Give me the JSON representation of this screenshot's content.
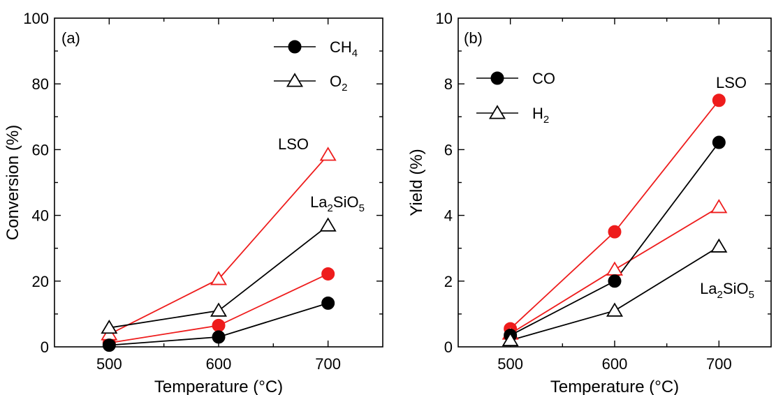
{
  "chart_data": [
    {
      "type": "line",
      "panel_label": "(a)",
      "xlabel": "Temperature (°C)",
      "ylabel": "Conversion (%)",
      "xlim": [
        450,
        750
      ],
      "ylim": [
        0,
        100
      ],
      "x_ticks": [
        500,
        600,
        700
      ],
      "y_ticks": [
        0,
        20,
        40,
        60,
        80,
        100
      ],
      "legend": {
        "placement": "top-right",
        "entries": [
          {
            "sym": "CH",
            "sub": "4",
            "marker": "circle-filled"
          },
          {
            "sym": "O",
            "sub": "2",
            "marker": "triangle-open"
          }
        ]
      },
      "annotations": [
        {
          "id": "lso",
          "text": "LSO",
          "color": "#ee1c1c"
        },
        {
          "id": "la2sio5",
          "parts": [
            "La",
            "2",
            "SiO",
            "5"
          ],
          "color": "#000000"
        }
      ],
      "series": [
        {
          "group": "LSO",
          "gas": "CH4",
          "marker": "circle-filled",
          "color": "#ee1c1c",
          "x": [
            500,
            600,
            700
          ],
          "y": [
            1.2,
            6.5,
            22.2
          ]
        },
        {
          "group": "LSO",
          "gas": "O2",
          "marker": "triangle-open",
          "color": "#ee1c1c",
          "x": [
            500,
            600,
            700
          ],
          "y": [
            3.8,
            20.6,
            58.4
          ]
        },
        {
          "group": "La2SiO5",
          "gas": "CH4",
          "marker": "circle-filled",
          "color": "#000000",
          "x": [
            500,
            600,
            700
          ],
          "y": [
            0.5,
            3.0,
            13.3
          ]
        },
        {
          "group": "La2SiO5",
          "gas": "O2",
          "marker": "triangle-open",
          "color": "#000000",
          "x": [
            500,
            600,
            700
          ],
          "y": [
            5.8,
            11.0,
            36.9
          ]
        }
      ]
    },
    {
      "type": "line",
      "panel_label": "(b)",
      "xlabel": "Temperature (°C)",
      "ylabel": "Yield (%)",
      "xlim": [
        450,
        750
      ],
      "ylim": [
        0,
        10
      ],
      "x_ticks": [
        500,
        600,
        700
      ],
      "y_ticks": [
        0,
        2,
        4,
        6,
        8,
        10
      ],
      "legend": {
        "placement": "top-left",
        "entries": [
          {
            "sym": "CO",
            "sub": "",
            "marker": "circle-filled"
          },
          {
            "sym": "H",
            "sub": "2",
            "marker": "triangle-open"
          }
        ]
      },
      "annotations": [
        {
          "id": "lso",
          "text": "LSO",
          "color": "#ee1c1c"
        },
        {
          "id": "la2sio5",
          "parts": [
            "La",
            "2",
            "SiO",
            "5"
          ],
          "color": "#000000"
        }
      ],
      "series": [
        {
          "group": "LSO",
          "gas": "CO",
          "marker": "circle-filled",
          "color": "#ee1c1c",
          "x": [
            500,
            600,
            700
          ],
          "y": [
            0.55,
            3.5,
            7.5
          ]
        },
        {
          "group": "LSO",
          "gas": "H2",
          "marker": "triangle-open",
          "color": "#ee1c1c",
          "x": [
            500,
            600,
            700
          ],
          "y": [
            0.4,
            2.35,
            4.25
          ]
        },
        {
          "group": "La2SiO5",
          "gas": "CO",
          "marker": "circle-filled",
          "color": "#000000",
          "x": [
            500,
            600,
            700
          ],
          "y": [
            0.35,
            2.0,
            6.22
          ]
        },
        {
          "group": "La2SiO5",
          "gas": "H2",
          "marker": "triangle-open",
          "color": "#000000",
          "x": [
            500,
            600,
            700
          ],
          "y": [
            0.2,
            1.1,
            3.05
          ]
        }
      ]
    }
  ]
}
